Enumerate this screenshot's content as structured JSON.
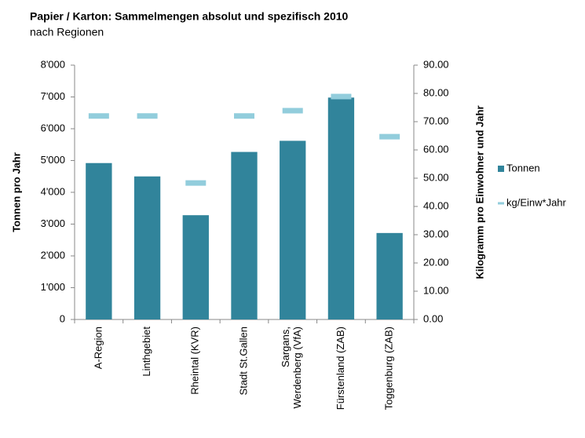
{
  "chart_data": {
    "type": "bar",
    "title": "Papier / Karton: Sammelmengen absolut und spezifisch 2010",
    "subtitle": "nach Regionen",
    "y_label": "Tonnen pro Jahr",
    "y2_label": "Kilogramm pro Einwohner und Jahr",
    "categories": [
      "A-Region",
      "Linthgebiet",
      "Rheintal (KVR)",
      "Stadt St.Gallen",
      "Sargans,\nWerdenberg (VfA)",
      "Fürstenland (ZAB)",
      "Toggenburg (ZAB)"
    ],
    "series": [
      {
        "name": "Tonnen",
        "color": "#31849b",
        "values": [
          4920,
          4500,
          3280,
          5270,
          5620,
          6980,
          2720
        ]
      },
      {
        "name": "kg/Einw*Jahr",
        "color": "#92cddc",
        "axis": "y2",
        "marker": "dash",
        "values": [
          72,
          72,
          48.3,
          72,
          73.9,
          78.9,
          64.7
        ]
      }
    ],
    "ylim": [
      0,
      8000
    ],
    "yticks": [
      0,
      {
        "value": 1000,
        "label": "1'000"
      },
      {
        "value": 2000,
        "label": "2'000"
      },
      {
        "value": 3000,
        "label": "3'000"
      },
      {
        "value": 4000,
        "label": "4'000"
      },
      {
        "value": 5000,
        "label": "5'000"
      },
      {
        "value": 6000,
        "label": "6'000"
      },
      {
        "value": 7000,
        "label": "7'000"
      },
      {
        "value": 8000,
        "label": "8'000"
      }
    ],
    "y2lim": [
      0,
      90
    ],
    "y2ticks": [
      {
        "value": 0,
        "label": "0.00"
      },
      {
        "value": 10,
        "label": "10.00"
      },
      {
        "value": 20,
        "label": "20.00"
      },
      {
        "value": 30,
        "label": "30.00"
      },
      {
        "value": 40,
        "label": "40.00"
      },
      {
        "value": 50,
        "label": "50.00"
      },
      {
        "value": 60,
        "label": "60.00"
      },
      {
        "value": 70,
        "label": "70.00"
      },
      {
        "value": 80,
        "label": "80.00"
      },
      {
        "value": 90,
        "label": "90.00"
      }
    ],
    "grid": false,
    "legend": "right"
  }
}
